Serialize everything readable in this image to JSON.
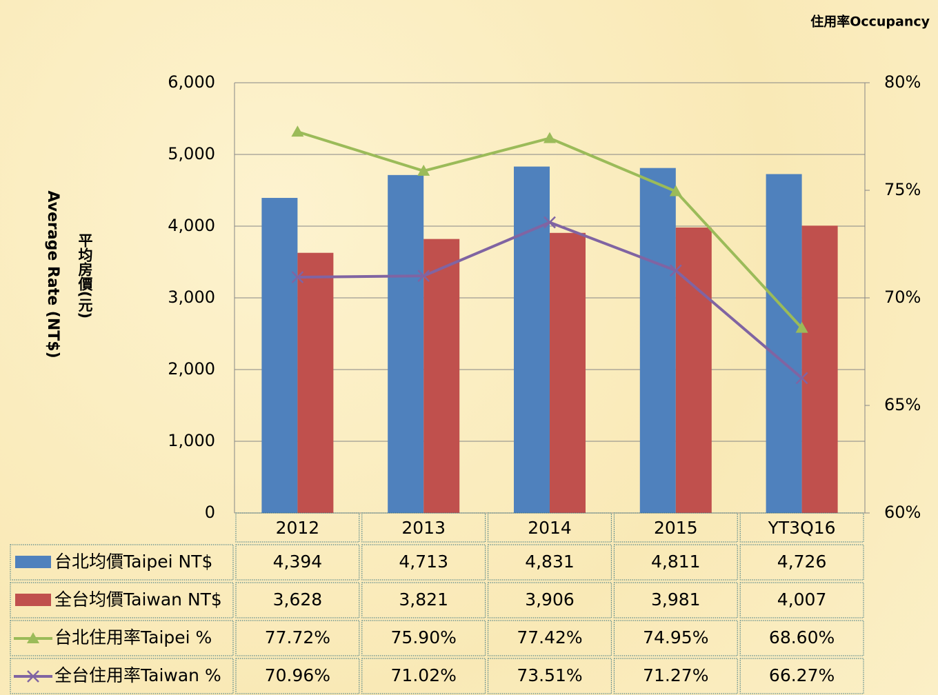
{
  "chart_data": {
    "type": "bar",
    "corner_label": "住用率Occupancy",
    "ylabel": "Average Rate (NT$)",
    "ylabel_zh": "平均房價(元)",
    "categories": [
      "2012",
      "2013",
      "2014",
      "2015",
      "YT3Q16"
    ],
    "series": [
      {
        "name": "台北均價Taipei NT$",
        "type": "bar",
        "color": "#4f81bd",
        "values": [
          4394,
          4713,
          4831,
          4811,
          4726
        ],
        "value_labels": [
          "4,394",
          "4,713",
          "4,831",
          "4,811",
          "4,726"
        ]
      },
      {
        "name": "全台均價Taiwan NT$",
        "type": "bar",
        "color": "#c0504d",
        "values": [
          3628,
          3821,
          3906,
          3981,
          4007
        ],
        "value_labels": [
          "3,628",
          "3,821",
          "3,906",
          "3,981",
          "4,007"
        ]
      },
      {
        "name": "台北住用率Taipei %",
        "type": "line",
        "marker": "triangle",
        "axis": "y2",
        "color": "#9bbb59",
        "values": [
          77.72,
          75.9,
          77.42,
          74.95,
          68.6
        ],
        "value_labels": [
          "77.72%",
          "75.90%",
          "77.42%",
          "74.95%",
          "68.60%"
        ]
      },
      {
        "name": "全台住用率Taiwan %",
        "type": "line",
        "marker": "x",
        "axis": "y2",
        "color": "#8064a2",
        "values": [
          70.96,
          71.02,
          73.51,
          71.27,
          66.27
        ],
        "value_labels": [
          "70.96%",
          "71.02%",
          "73.51%",
          "71.27%",
          "66.27%"
        ]
      }
    ],
    "ylim": [
      0,
      6000
    ],
    "yticks": [
      0,
      {
        "value": 1000,
        "label": "1,000"
      },
      {
        "value": 2000,
        "label": "2,000"
      },
      {
        "value": 3000,
        "label": "3,000"
      },
      {
        "value": 4000,
        "label": "4,000"
      },
      {
        "value": 5000,
        "label": "5,000"
      },
      {
        "value": 6000,
        "label": "6,000"
      }
    ],
    "y2lim": [
      60,
      80
    ],
    "y2ticks": [
      {
        "value": 60,
        "label": "60%"
      },
      {
        "value": 65,
        "label": "65%"
      },
      {
        "value": 70,
        "label": "70%"
      },
      {
        "value": 75,
        "label": "75%"
      },
      {
        "value": 80,
        "label": "80%"
      }
    ],
    "grid": true
  }
}
